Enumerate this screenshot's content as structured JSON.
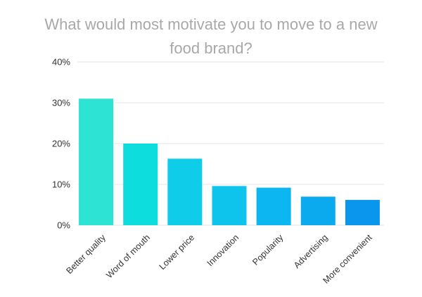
{
  "chart_data": {
    "type": "bar",
    "title": "What would most motivate you to move to a new food brand?",
    "categories": [
      "Better quality",
      "Word of mouth",
      "Lower price",
      "Innovation",
      "Popularity",
      "Advertising",
      "More convenient"
    ],
    "values": [
      31,
      20,
      16.3,
      9.6,
      9.2,
      7,
      6.2
    ],
    "colors": [
      "#2de3d3",
      "#0edddd",
      "#0fcde9",
      "#0fc4ec",
      "#0cb6f0",
      "#0ba9ee",
      "#0a96ec"
    ],
    "ylim": [
      0,
      40
    ],
    "yticks": [
      0,
      10,
      20,
      30,
      40
    ],
    "ytick_labels": [
      "0%",
      "10%",
      "20%",
      "30%",
      "40%"
    ],
    "xlabel": "",
    "ylabel": "",
    "grid": true,
    "gridline_color": "#e6e6e6"
  }
}
